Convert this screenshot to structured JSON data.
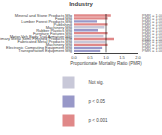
{
  "chart_data": {
    "type": "bar",
    "orientation": "horizontal",
    "title": "Industry",
    "xlabel": "Proportionate Mortality Ratio (PMR)",
    "categories": [
      "Mineral and Stone Products Mfg",
      "Food Mfg",
      "Lumber Forest Products Mfg",
      "Publishing",
      "Machinery Mfg",
      "Rubber Plastics Mfg",
      "Furniture Fixtures Mfg",
      "Motor Veh Body Trail Armature Mfg",
      "Primary Metal Semi Finished Products Mfg",
      "Fabricated Metal Products Mfg",
      "Machinery Mfg",
      "Electronic Computing Equipment Mfg",
      "Transportation Equipment Mfg"
    ],
    "series": [
      {
        "name": "Not sig.",
        "color": "#c8c8d8",
        "values": [
          null,
          null,
          null,
          null,
          0.95,
          null,
          null,
          0.92,
          null,
          0.98,
          null,
          null,
          null
        ]
      },
      {
        "name": "p < 0.05",
        "color": "#9898c8",
        "values": [
          null,
          null,
          0.72,
          null,
          null,
          0.75,
          null,
          null,
          null,
          null,
          null,
          0.88,
          0.82
        ]
      },
      {
        "name": "p < 0.001",
        "color": "#e08888",
        "values": [
          1.15,
          1.05,
          null,
          1.05,
          null,
          null,
          1.05,
          null,
          1.25,
          null,
          1.05,
          null,
          null
        ]
      }
    ],
    "xlim": [
      0,
      2.0
    ],
    "xticks": [
      {
        "value": 0,
        "label": "0.0"
      },
      0.5,
      {
        "value": 1,
        "label": "1.0"
      },
      1.5,
      {
        "value": 2,
        "label": "2.0"
      }
    ],
    "reference_line": 1.0,
    "annotations": [
      "PMR = 1.00",
      "PMR = 1.00",
      "PMR = 1.00",
      "PMR = 1.00",
      "PMR = 1.00",
      "PMR = 1.00",
      "PMR = 1.00",
      "PMR = 1.00",
      "PMR = 1.00",
      "PMR = 1.00",
      "PMR = 1.00",
      "PMR = 1.00",
      "PMR = 1.00"
    ],
    "grid": false,
    "legend": "bottom"
  }
}
